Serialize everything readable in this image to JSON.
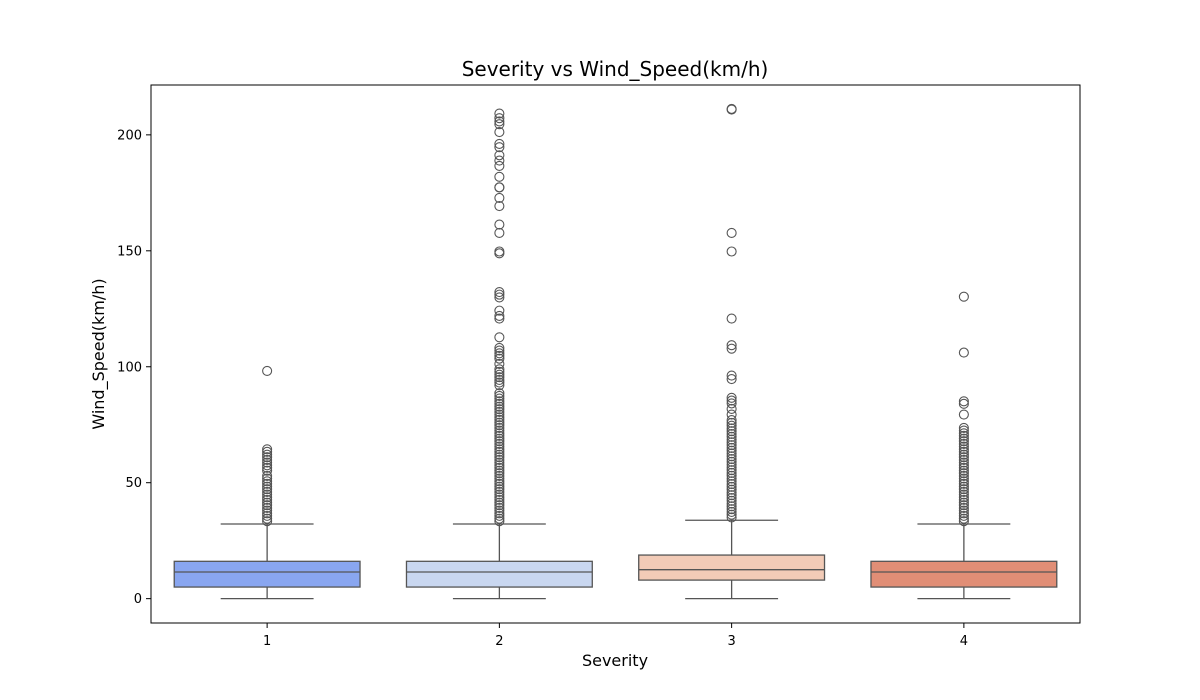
{
  "chart_data": {
    "type": "box",
    "title": "Severity vs Wind_Speed(km/h)",
    "xlabel": "Severity",
    "ylabel": "Wind_Speed(km/h)",
    "categories": [
      "1",
      "2",
      "3",
      "4"
    ],
    "ylim": [
      -10.5,
      221.5
    ],
    "yticks": [
      0,
      50,
      100,
      150,
      200
    ],
    "grid": false,
    "legend": "none",
    "boxes": [
      {
        "category": "1",
        "color": "#89a6f0",
        "whisker_low": 0,
        "q1": 5,
        "median": 11.5,
        "q3": 16.1,
        "whisker_high": 32.2,
        "outliers": [
          33.4,
          34.5,
          35.7,
          36.8,
          38,
          39.1,
          40.3,
          41.4,
          42.6,
          43.7,
          44.9,
          46,
          47.2,
          48.3,
          49.5,
          50.6,
          51.8,
          52.9,
          55.2,
          56.4,
          57.5,
          58.7,
          59.8,
          61,
          62.1,
          63.3,
          64.4,
          98.2
        ]
      },
      {
        "category": "2",
        "color": "#c9d7f0",
        "whisker_low": 0,
        "q1": 5,
        "median": 11.5,
        "q3": 16.1,
        "whisker_high": 32.2,
        "outliers": [
          33.4,
          34.5,
          35.7,
          36.8,
          38,
          39.1,
          40.3,
          41.4,
          42.6,
          43.7,
          44.9,
          46,
          47.2,
          48.3,
          49.5,
          50.6,
          51.8,
          52.9,
          54.1,
          55.2,
          56.4,
          57.5,
          58.7,
          59.8,
          61,
          62.1,
          63.3,
          64.4,
          65.6,
          66.7,
          67.9,
          69,
          70.2,
          71.3,
          72.5,
          73.6,
          74.8,
          75.9,
          77.1,
          78.2,
          79.4,
          80.5,
          81.7,
          82.8,
          84,
          85.1,
          86.3,
          87.4,
          88.6,
          92,
          93.2,
          94.3,
          95.5,
          96.6,
          97.8,
          98.9,
          101.2,
          103.5,
          104.7,
          105.8,
          107,
          108.1,
          112.7,
          120.8,
          121.9,
          124.2,
          129.9,
          131.1,
          132.2,
          148.9,
          149.7,
          157.7,
          161.3,
          169.3,
          172.8,
          177.3,
          177.4,
          181.9,
          186.6,
          188.9,
          191.2,
          194.7,
          196.1,
          201.2,
          204.6,
          205.8,
          207.2,
          209.2
        ]
      },
      {
        "category": "3",
        "color": "#f2cbb7",
        "whisker_low": 0,
        "q1": 8,
        "median": 12.5,
        "q3": 18.8,
        "whisker_high": 33.8,
        "outliers": [
          35,
          36.2,
          37.4,
          38.6,
          39.8,
          41,
          42.2,
          43.4,
          44.6,
          45.8,
          47,
          48.2,
          49.4,
          50.6,
          51.8,
          53,
          54.2,
          55.4,
          56.6,
          57.8,
          59,
          60.2,
          61.4,
          62.6,
          63.8,
          65,
          66.2,
          67.4,
          68.6,
          69.8,
          71,
          72.2,
          73.4,
          74.6,
          75.8,
          77,
          79.4,
          81.8,
          84.2,
          85.4,
          86.6,
          94.7,
          96.2,
          107.8,
          109.3,
          120.8,
          149.7,
          157.7,
          210.9,
          211.2
        ]
      },
      {
        "category": "4",
        "color": "#e18e76",
        "whisker_low": 0,
        "q1": 5,
        "median": 11.5,
        "q3": 16.1,
        "whisker_high": 32.2,
        "outliers": [
          33.4,
          34.5,
          35.7,
          36.8,
          38,
          39.1,
          40.3,
          41.4,
          42.6,
          43.7,
          44.9,
          46,
          47.2,
          48.3,
          49.5,
          50.6,
          51.8,
          52.9,
          54.1,
          55.2,
          56.4,
          57.5,
          58.7,
          59.8,
          61,
          62.1,
          63.3,
          64.4,
          65.6,
          66.7,
          67.9,
          69,
          70.2,
          71.3,
          72.5,
          73.6,
          79.4,
          84,
          85.1,
          106.1,
          130.2
        ]
      }
    ]
  }
}
